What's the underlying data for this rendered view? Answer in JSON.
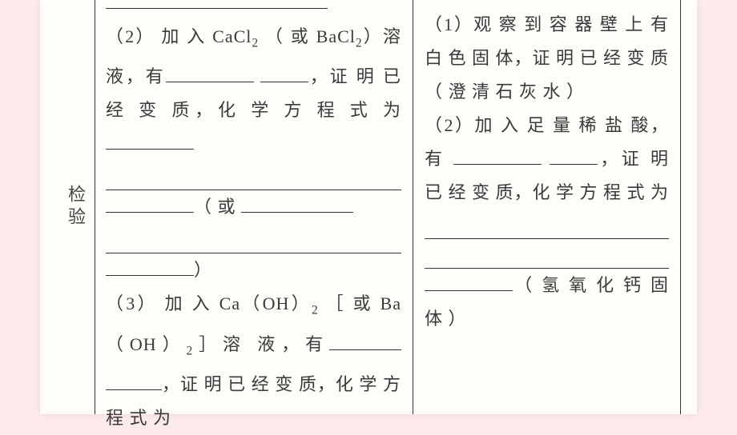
{
  "left": {
    "label": "检验"
  },
  "mid": {
    "item2_a": "（2） 加 入 CaCl",
    "item2_sub1": "2",
    "item2_b": "（ 或 BaCl",
    "item2_sub2": "2",
    "item2_c": "）溶 液，有",
    "item2_d": "，证 明 已 经 变 质，化 学 方 程 式 为",
    "paren_open": "（ 或",
    "paren_close": "）",
    "item3_a": "（3） 加 入 Ca（OH）",
    "item3_sub1": "2",
    "item3_b": "［ 或 Ba（OH）",
    "item3_sub2": "2",
    "item3_c": "］溶 液，有",
    "item3_d": "，证 明 已 经 变 质，化 学 方 程 式 为"
  },
  "right": {
    "r1": "（1）观 察 到 容 器 壁 上 有 白 色 固 体，证 明 已 经 变 质（ 澄 清 石 灰 水 ）",
    "r2_a": "（2）加 入 足 量 稀 盐 酸， 有",
    "r2_b": "，证 明 已 经 变 质，化 学 方 程 式 为",
    "r2_c": "（ 氢 氧 化 钙 固 体 ）"
  }
}
